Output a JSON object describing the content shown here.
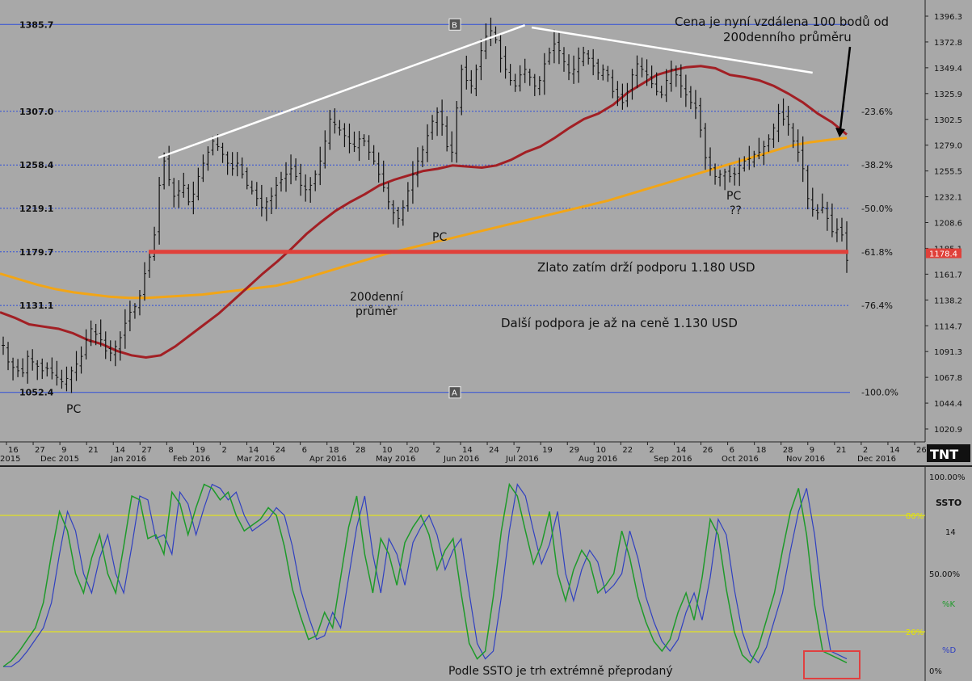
{
  "colors": {
    "background": "#a8a8a8",
    "bar": "#111111",
    "ma_short": "#a21f24",
    "ma_long": "#f2a516",
    "trendline": "#ffffff",
    "support": "#e0403a",
    "fib": "#2f4fd8",
    "stoch_k": "#1e9a2a",
    "stoch_d": "#3040c0",
    "stoch_level": "#f0f000",
    "box": "#e04040"
  },
  "chart_data": [
    {
      "type": "candlestick",
      "y_axis_ticks": [
        "1396.3",
        "1372.8",
        "1349.4",
        "1325.9",
        "1302.5",
        "1279.0",
        "1255.5",
        "1232.1",
        "1208.6",
        "1185.1",
        "1161.7",
        "1138.2",
        "1114.7",
        "1091.3",
        "1067.8",
        "1044.4",
        "1020.9"
      ],
      "ylim": [
        1009,
        1402
      ],
      "last_price": "1178.4",
      "fib_levels": [
        {
          "price": 1385.7,
          "label_left": "1385.7",
          "label_right": ""
        },
        {
          "price": 1307.0,
          "label_left": "1307.0",
          "label_right": "-23.6%"
        },
        {
          "price": 1258.4,
          "label_left": "1258.4",
          "label_right": "-38.2%"
        },
        {
          "price": 1219.1,
          "label_left": "1219.1",
          "label_right": "-50.0%"
        },
        {
          "price": 1179.7,
          "label_left": "1179.7",
          "label_right": "-61.8%"
        },
        {
          "price": 1131.1,
          "label_left": "1131.1",
          "label_right": "-76.4%"
        },
        {
          "price": 1052.4,
          "label_left": "1052.4",
          "label_right": "-100.0%"
        }
      ],
      "markers": [
        {
          "letter": "B",
          "price": 1385.7
        },
        {
          "letter": "A",
          "price": 1052.4
        }
      ],
      "x_day_ticks": [
        "16",
        "27",
        "9",
        "21",
        "14",
        "27",
        "8",
        "19",
        "2",
        "14",
        "24",
        "6",
        "18",
        "28",
        "10",
        "20",
        "2",
        "14",
        "24",
        "7",
        "19",
        "29",
        "10",
        "22",
        "2",
        "14",
        "26",
        "6",
        "18",
        "28",
        "9",
        "21",
        "2",
        "14",
        "26"
      ],
      "x_month_labels": [
        "2015",
        "Dec 2015",
        "Jan 2016",
        "Feb 2016",
        "Mar 2016",
        "Apr 2016",
        "May 2016",
        "Jun 2016",
        "Jul 2016",
        "Aug 2016",
        "Sep 2016",
        "Oct 2016",
        "Nov 2016",
        "Dec 2016"
      ],
      "ohlc_path": [
        1095,
        1080,
        1075,
        1072,
        1070,
        1085,
        1080,
        1076,
        1072,
        1074,
        1070,
        1066,
        1062,
        1065,
        1072,
        1078,
        1085,
        1100,
        1110,
        1105,
        1100,
        1090,
        1088,
        1094,
        1102,
        1115,
        1125,
        1130,
        1140,
        1160,
        1175,
        1195,
        1240,
        1262,
        1245,
        1230,
        1235,
        1240,
        1225,
        1232,
        1248,
        1260,
        1270,
        1280,
        1275,
        1268,
        1260,
        1255,
        1260,
        1250,
        1240,
        1235,
        1228,
        1220,
        1225,
        1230,
        1240,
        1245,
        1250,
        1255,
        1248,
        1240,
        1236,
        1240,
        1250,
        1262,
        1280,
        1300,
        1295,
        1290,
        1285,
        1278,
        1275,
        1282,
        1280,
        1270,
        1262,
        1250,
        1238,
        1225,
        1215,
        1210,
        1220,
        1235,
        1250,
        1262,
        1272,
        1285,
        1298,
        1306,
        1295,
        1275,
        1270,
        1310,
        1345,
        1335,
        1330,
        1345,
        1362,
        1375,
        1380,
        1372,
        1355,
        1345,
        1335,
        1330,
        1340,
        1345,
        1338,
        1330,
        1335,
        1350,
        1360,
        1368,
        1362,
        1352,
        1342,
        1345,
        1355,
        1360,
        1355,
        1348,
        1342,
        1345,
        1340,
        1325,
        1320,
        1315,
        1325,
        1340,
        1350,
        1345,
        1340,
        1332,
        1325,
        1322,
        1335,
        1345,
        1340,
        1330,
        1322,
        1315,
        1310,
        1290,
        1265,
        1255,
        1248,
        1250,
        1252,
        1248,
        1250,
        1258,
        1262,
        1264,
        1268,
        1270,
        1275,
        1282,
        1292,
        1305,
        1300,
        1295,
        1280,
        1270,
        1255,
        1228,
        1218,
        1215,
        1220,
        1210,
        1198,
        1200,
        1195,
        1172
      ],
      "ma_short_path": [
        1125,
        1120,
        1114,
        1112,
        1110,
        1106,
        1100,
        1096,
        1090,
        1086,
        1084,
        1086,
        1094,
        1104,
        1114,
        1124,
        1136,
        1148,
        1160,
        1171,
        1183,
        1196,
        1207,
        1217,
        1225,
        1232,
        1240,
        1245,
        1249,
        1253,
        1255,
        1258,
        1257,
        1256,
        1258,
        1263,
        1270,
        1275,
        1283,
        1292,
        1300,
        1305,
        1313,
        1324,
        1332,
        1340,
        1344,
        1347,
        1348,
        1346,
        1340,
        1338,
        1335,
        1330,
        1323,
        1315,
        1305,
        1297,
        1286
      ],
      "ma_long_path": [
        1160,
        1155,
        1150,
        1146,
        1143,
        1141,
        1139,
        1138,
        1138,
        1139,
        1140,
        1141,
        1143,
        1145,
        1147,
        1149,
        1153,
        1158,
        1163,
        1168,
        1173,
        1178,
        1182,
        1186,
        1190,
        1194,
        1198,
        1202,
        1206,
        1210,
        1214,
        1218,
        1222,
        1226,
        1231,
        1236,
        1241,
        1246,
        1251,
        1256,
        1261,
        1266,
        1271,
        1276,
        1279,
        1281,
        1283
      ],
      "white_lines": [
        {
          "from": [
            0.163,
            1265
          ],
          "to": [
            0.54,
            1385
          ]
        },
        {
          "from": [
            0.547,
            1383
          ],
          "to": [
            0.836,
            1342
          ]
        }
      ],
      "annotations": [
        "PC",
        "PC",
        "PC",
        "??",
        "200denní",
        "průměr",
        "Cena je nyní vzdálena 100 bodů od",
        "200denního průměru",
        "Zlato zatím drží podporu 1.180 USD",
        "Další podpora je až na ceně 1.130 USD"
      ]
    },
    {
      "type": "line",
      "name": "SSTO",
      "params": "14",
      "k_label": "%K",
      "d_label": "%D",
      "y_ticks": [
        "100.00%",
        "80%",
        "50.00%",
        "20%",
        "0%"
      ],
      "ylim": [
        0,
        100
      ],
      "levels": [
        80,
        20
      ],
      "k_values": [
        2,
        5,
        10,
        16,
        22,
        35,
        60,
        82,
        72,
        50,
        40,
        58,
        70,
        50,
        40,
        64,
        90,
        88,
        68,
        70,
        60,
        92,
        86,
        70,
        84,
        96,
        94,
        88,
        92,
        80,
        72,
        75,
        78,
        84,
        80,
        64,
        42,
        28,
        16,
        18,
        30,
        22,
        48,
        74,
        90,
        60,
        40,
        68,
        60,
        44,
        66,
        74,
        80,
        70,
        52,
        62,
        68,
        40,
        14,
        6,
        10,
        38,
        72,
        96,
        90,
        72,
        55,
        65,
        82,
        50,
        36,
        52,
        62,
        56,
        40,
        44,
        50,
        72,
        58,
        38,
        25,
        15,
        10,
        16,
        30,
        40,
        26,
        48,
        78,
        70,
        42,
        20,
        8,
        4,
        12,
        26,
        40,
        62,
        82,
        94,
        70,
        34,
        10,
        8,
        6,
        4
      ],
      "annotation": "Podle SSTO je trh extrémně přeprodaný"
    }
  ]
}
